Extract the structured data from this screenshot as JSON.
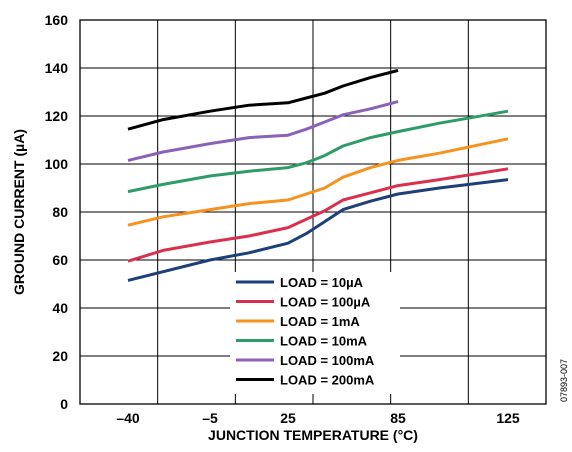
{
  "chart_data": {
    "type": "line",
    "xlabel": "JUNCTION TEMPERATURE (°C)",
    "ylabel": "GROUND CURRENT (µA)",
    "x_ticks": [
      -40,
      -5,
      25,
      85,
      125
    ],
    "x_tick_labels": [
      "–40",
      "–5",
      "25",
      "85",
      "125"
    ],
    "y_ticks": [
      0,
      20,
      40,
      60,
      80,
      100,
      120,
      140,
      160
    ],
    "y_tick_labels": [
      "0",
      "20",
      "40",
      "60",
      "80",
      "100",
      "120",
      "140",
      "160"
    ],
    "ylim": [
      0,
      160
    ],
    "grid": true,
    "legend_position": "lower-center",
    "figure_code": "07893-007",
    "series": [
      {
        "name": "LOAD = 10µA",
        "color": "#1d3f7a",
        "points": [
          [
            -40,
            51.5
          ],
          [
            -5,
            60
          ],
          [
            10,
            63
          ],
          [
            25,
            67
          ],
          [
            35,
            71
          ],
          [
            45,
            76
          ],
          [
            55,
            81
          ],
          [
            70,
            84.5
          ],
          [
            85,
            87.5
          ],
          [
            100,
            90
          ],
          [
            125,
            93.5
          ]
        ]
      },
      {
        "name": "LOAD = 100µA",
        "color": "#d9304e",
        "points": [
          [
            -40,
            59.5
          ],
          [
            -25,
            64
          ],
          [
            -5,
            67.5
          ],
          [
            10,
            70
          ],
          [
            25,
            73.5
          ],
          [
            35,
            77
          ],
          [
            45,
            80.5
          ],
          [
            55,
            85
          ],
          [
            70,
            88
          ],
          [
            85,
            91
          ],
          [
            100,
            93.5
          ],
          [
            125,
            98
          ]
        ]
      },
      {
        "name": "LOAD = 1mA",
        "color": "#f7921e",
        "points": [
          [
            -40,
            74.5
          ],
          [
            -25,
            78
          ],
          [
            -5,
            81
          ],
          [
            10,
            83.5
          ],
          [
            25,
            85
          ],
          [
            35,
            87.5
          ],
          [
            45,
            90
          ],
          [
            55,
            94.5
          ],
          [
            70,
            98.5
          ],
          [
            85,
            101.5
          ],
          [
            100,
            104.5
          ],
          [
            125,
            110.5
          ]
        ]
      },
      {
        "name": "LOAD = 10mA",
        "color": "#2e9b6a",
        "points": [
          [
            -40,
            88.5
          ],
          [
            -25,
            91.5
          ],
          [
            -5,
            95
          ],
          [
            10,
            97
          ],
          [
            25,
            98.5
          ],
          [
            35,
            100.5
          ],
          [
            45,
            103.5
          ],
          [
            55,
            107.5
          ],
          [
            70,
            111
          ],
          [
            85,
            113.5
          ],
          [
            100,
            117
          ],
          [
            125,
            122
          ]
        ]
      },
      {
        "name": "LOAD = 100mA",
        "color": "#8a62b8",
        "points": [
          [
            -40,
            101.5
          ],
          [
            -25,
            105
          ],
          [
            -5,
            108.5
          ],
          [
            10,
            111
          ],
          [
            25,
            112
          ],
          [
            35,
            114.5
          ],
          [
            45,
            117.5
          ],
          [
            55,
            120.5
          ],
          [
            70,
            123
          ],
          [
            85,
            126
          ]
        ]
      },
      {
        "name": "LOAD = 200mA",
        "color": "#000000",
        "points": [
          [
            -40,
            114.5
          ],
          [
            -25,
            118.5
          ],
          [
            -5,
            122
          ],
          [
            10,
            124.5
          ],
          [
            25,
            125.5
          ],
          [
            35,
            127.5
          ],
          [
            45,
            129.5
          ],
          [
            55,
            132.5
          ],
          [
            70,
            136
          ],
          [
            85,
            139
          ]
        ]
      }
    ]
  }
}
